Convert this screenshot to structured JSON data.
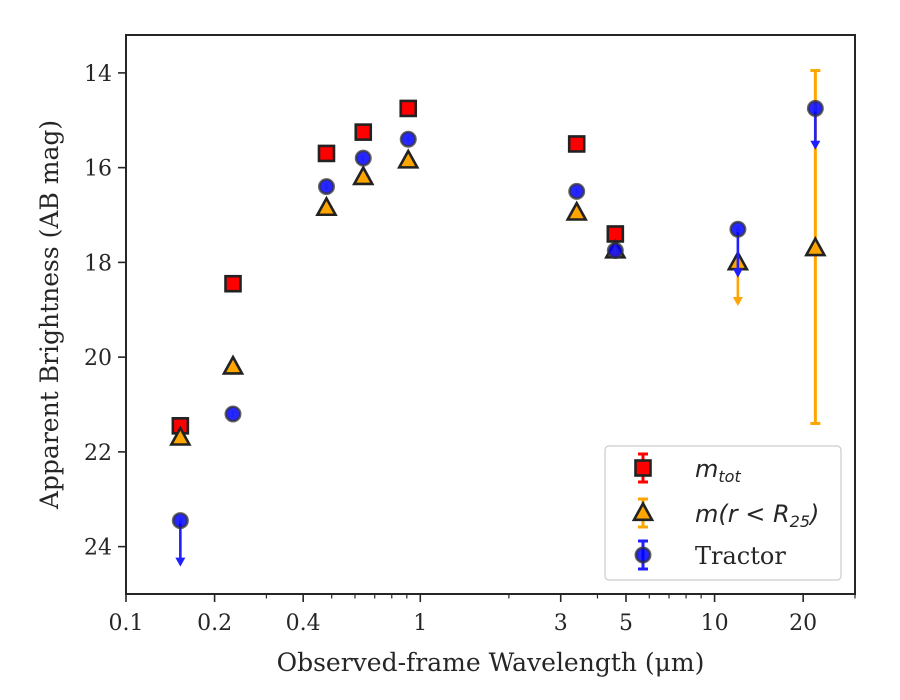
{
  "chart_data": {
    "type": "scatter",
    "xlabel": "Observed-frame Wavelength (μm)",
    "ylabel": "Apparent Brightness (AB mag)",
    "x_scale": "log",
    "xlim": [
      0.1,
      30
    ],
    "ylim": [
      25,
      13.2
    ],
    "y_inverted": true,
    "x_ticks": [
      {
        "value": 0.1,
        "label": "0.1"
      },
      {
        "value": 0.2,
        "label": "0.2"
      },
      {
        "value": 0.4,
        "label": "0.4"
      },
      {
        "value": 1,
        "label": "1"
      },
      {
        "value": 3,
        "label": "3"
      },
      {
        "value": 5,
        "label": "5"
      },
      {
        "value": 10,
        "label": "10"
      },
      {
        "value": 20,
        "label": "20"
      }
    ],
    "y_ticks": [
      {
        "value": 14,
        "label": "14"
      },
      {
        "value": 16,
        "label": "16"
      },
      {
        "value": 18,
        "label": "18"
      },
      {
        "value": 20,
        "label": "20"
      },
      {
        "value": 22,
        "label": "22"
      },
      {
        "value": 24,
        "label": "24"
      }
    ],
    "grid": false,
    "legend_position": "bottom-right",
    "series": [
      {
        "name": "m_tot",
        "legend_main": "m",
        "legend_sub": "tot",
        "marker": "square",
        "color": "#ff0000",
        "errcolor": "#ff0000",
        "points": [
          {
            "x": 0.153,
            "y": 21.45
          },
          {
            "x": 0.231,
            "y": 18.45
          },
          {
            "x": 0.48,
            "y": 15.7
          },
          {
            "x": 0.64,
            "y": 15.25
          },
          {
            "x": 0.91,
            "y": 14.75
          },
          {
            "x": 3.4,
            "y": 15.5
          },
          {
            "x": 4.6,
            "y": 17.4
          }
        ]
      },
      {
        "name": "m(r < R25)",
        "legend_main": "m(r < R",
        "legend_sub": "25",
        "legend_tail": ")",
        "marker": "triangle",
        "color": "#ffa500",
        "errcolor": "#ffa500",
        "points": [
          {
            "x": 0.153,
            "y": 21.7
          },
          {
            "x": 0.231,
            "y": 20.2
          },
          {
            "x": 0.48,
            "y": 16.85
          },
          {
            "x": 0.64,
            "y": 16.2
          },
          {
            "x": 0.91,
            "y": 15.85
          },
          {
            "x": 3.4,
            "y": 16.95
          },
          {
            "x": 4.6,
            "y": 17.75
          },
          {
            "x": 12.0,
            "y": 18.0,
            "upper_limit_to": 18.9
          },
          {
            "x": 22.0,
            "y": 17.7,
            "err_low": 13.95,
            "err_high": 21.4
          }
        ]
      },
      {
        "name": "Tractor",
        "legend_main": "Tractor",
        "marker": "circle",
        "color": "#0000ff",
        "errcolor": "#1f1fff",
        "points": [
          {
            "x": 0.153,
            "y": 23.45,
            "upper_limit_to": 24.4
          },
          {
            "x": 0.231,
            "y": 21.2
          },
          {
            "x": 0.48,
            "y": 16.4
          },
          {
            "x": 0.64,
            "y": 15.8
          },
          {
            "x": 0.91,
            "y": 15.4
          },
          {
            "x": 3.4,
            "y": 16.5
          },
          {
            "x": 4.6,
            "y": 17.75
          },
          {
            "x": 12.0,
            "y": 17.3,
            "upper_limit_to": 18.3
          },
          {
            "x": 22.0,
            "y": 14.75,
            "upper_limit_to": 15.6
          }
        ]
      }
    ]
  }
}
